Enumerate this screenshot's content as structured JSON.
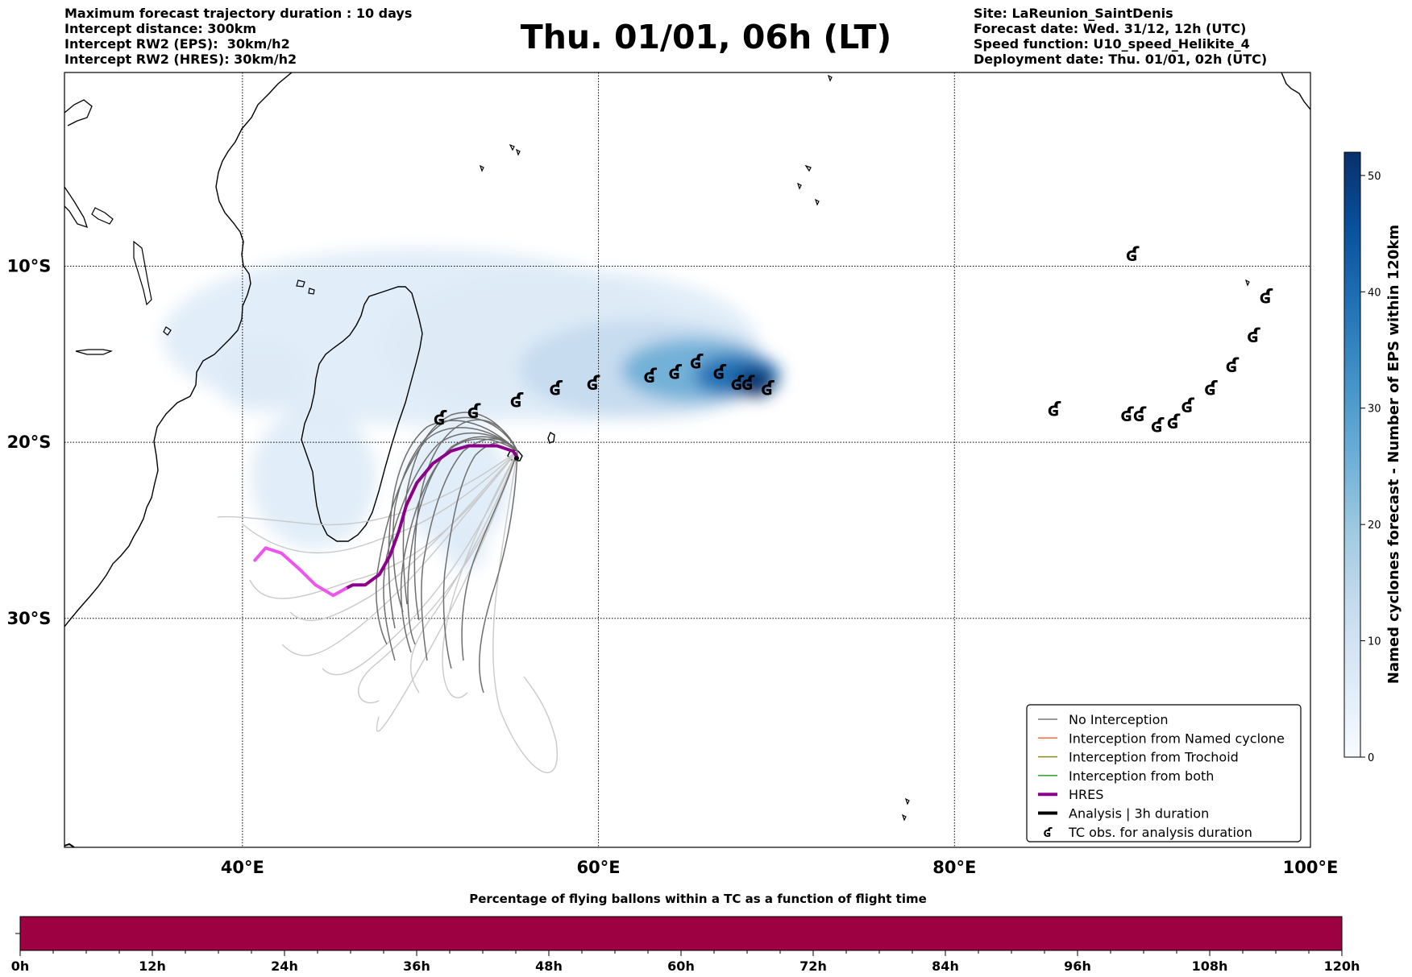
{
  "header": {
    "left_lines": [
      "Maximum forecast trajectory duration : 10 days",
      "Intercept distance: 300km",
      "Intercept RW2 (EPS):  30km/h2",
      "Intercept RW2 (HRES): 30km/h2"
    ],
    "title": "Thu. 01/01, 06h (LT)",
    "right_lines": [
      "Site: LaReunion_SaintDenis",
      "Forecast date: Wed. 31/12, 12h (UTC)",
      "Speed function: U10_speed_Helikite_4",
      "Deployment date: Thu. 01/01, 02h (UTC)"
    ]
  },
  "map": {
    "lon_range": [
      30,
      100
    ],
    "lat_range": [
      -43,
      1
    ],
    "lon_ticks": [
      {
        "value": 40,
        "label": "40°E"
      },
      {
        "value": 60,
        "label": "60°E"
      },
      {
        "value": 80,
        "label": "80°E"
      },
      {
        "value": 100,
        "label": "100°E"
      }
    ],
    "lat_ticks": [
      {
        "value": -10,
        "label": "10°S"
      },
      {
        "value": -20,
        "label": "20°S"
      },
      {
        "value": -30,
        "label": "30°S"
      }
    ],
    "grid": true,
    "site": {
      "name": "LaReunion_SaintDenis",
      "lon": 55.4,
      "lat": -20.9
    },
    "tc_symbol": "ʛ",
    "tc_observations": [
      [
        51.1,
        -18.6
      ],
      [
        53.0,
        -18.2
      ],
      [
        55.4,
        -17.6
      ],
      [
        57.6,
        -16.9
      ],
      [
        59.7,
        -16.6
      ],
      [
        62.9,
        -16.2
      ],
      [
        64.3,
        -16.0
      ],
      [
        65.5,
        -15.4
      ],
      [
        66.8,
        -16.0
      ],
      [
        67.8,
        -16.6
      ],
      [
        68.4,
        -16.6
      ],
      [
        69.5,
        -16.9
      ],
      [
        90.0,
        -9.3
      ],
      [
        97.5,
        -11.7
      ],
      [
        96.8,
        -13.9
      ],
      [
        95.6,
        -15.6
      ],
      [
        94.4,
        -16.9
      ],
      [
        93.1,
        -17.9
      ],
      [
        92.3,
        -18.8
      ],
      [
        91.4,
        -19.0
      ],
      [
        90.4,
        -18.4
      ],
      [
        89.7,
        -18.4
      ],
      [
        85.6,
        -18.1
      ]
    ],
    "hres_color": "#8b008b",
    "hres_track": [
      [
        55.4,
        -20.8
      ],
      [
        55.2,
        -20.5
      ],
      [
        54.3,
        -20.2
      ],
      [
        53.6,
        -20.2
      ],
      [
        52.7,
        -20.2
      ],
      [
        51.7,
        -20.5
      ],
      [
        50.7,
        -21.2
      ],
      [
        49.8,
        -22.3
      ],
      [
        49.2,
        -23.6
      ],
      [
        48.8,
        -25.0
      ],
      [
        48.3,
        -26.4
      ],
      [
        47.7,
        -27.5
      ],
      [
        46.9,
        -28.1
      ],
      [
        46.2,
        -28.1
      ],
      [
        45.8,
        -28.3
      ]
    ],
    "hres_overland_color": "#ee55ee",
    "hres_overland_track": [
      [
        45.8,
        -28.3
      ],
      [
        45.1,
        -28.7
      ],
      [
        44.1,
        -28.1
      ],
      [
        43.2,
        -27.2
      ],
      [
        42.2,
        -26.3
      ],
      [
        41.3,
        -26.0
      ],
      [
        40.7,
        -26.7
      ]
    ],
    "colorbar": {
      "label": "Named cyclones forecast - Number of EPS within 120km",
      "min": 0,
      "max": 52,
      "ticks": [
        0,
        10,
        20,
        30,
        40,
        50
      ],
      "colors": [
        "#f7fbff",
        "#deebf7",
        "#c6dbef",
        "#9ecae1",
        "#6baed6",
        "#4292c6",
        "#2171b5",
        "#08519c",
        "#08306b"
      ]
    },
    "density_blobs": [
      {
        "lon": 50.0,
        "lat": -14.0,
        "rx": 14.5,
        "ry": 5.0,
        "level": 1
      },
      {
        "lon": 41.0,
        "lat": -16.3,
        "rx": 2.5,
        "ry": 2.0,
        "level": 1
      },
      {
        "lon": 44.0,
        "lat": -22.0,
        "rx": 3.5,
        "ry": 4.0,
        "level": 1
      },
      {
        "lon": 52.0,
        "lat": -22.5,
        "rx": 3.0,
        "ry": 3.5,
        "level": 1
      },
      {
        "lon": 58.5,
        "lat": -14.5,
        "rx": 10.5,
        "ry": 4.3,
        "level": 1
      },
      {
        "lon": 62.5,
        "lat": -15.8,
        "rx": 7.0,
        "ry": 2.8,
        "level": 2
      },
      {
        "lon": 65.5,
        "lat": -15.9,
        "rx": 4.2,
        "ry": 1.8,
        "level": 4
      },
      {
        "lon": 67.8,
        "lat": -16.2,
        "rx": 2.4,
        "ry": 1.2,
        "level": 6
      },
      {
        "lon": 68.8,
        "lat": -16.6,
        "rx": 1.1,
        "ry": 0.8,
        "level": 8
      },
      {
        "lon": 52.5,
        "lat": -26.0,
        "rx": 1.2,
        "ry": 1.3,
        "level": 1
      }
    ],
    "legend": [
      {
        "label": "No Interception",
        "color": "#777777",
        "kind": "line",
        "width": 1.5
      },
      {
        "label": "Interception from Named cyclone",
        "color": "#ff6a3d",
        "kind": "line",
        "width": 1.5
      },
      {
        "label": "Interception from Trochoid",
        "color": "#8b8b1a",
        "kind": "line",
        "width": 1.5
      },
      {
        "label": "Interception from both",
        "color": "#2ca02c",
        "kind": "line",
        "width": 1.5
      },
      {
        "label": "HRES",
        "color": "#8b008b",
        "kind": "line",
        "width": 4
      },
      {
        "label": "Analysis | 3h duration",
        "color": "#000000",
        "kind": "line",
        "width": 4
      },
      {
        "label": "TC obs. for analysis duration",
        "color": "#000000",
        "kind": "marker"
      }
    ]
  },
  "time_bar": {
    "title": "Percentage of flying ballons within a TC as a function of flight time",
    "ticks": [
      "0h",
      "12h",
      "24h",
      "36h",
      "48h",
      "60h",
      "72h",
      "84h",
      "96h",
      "108h",
      "120h"
    ],
    "bar_color": "#9e0142"
  }
}
